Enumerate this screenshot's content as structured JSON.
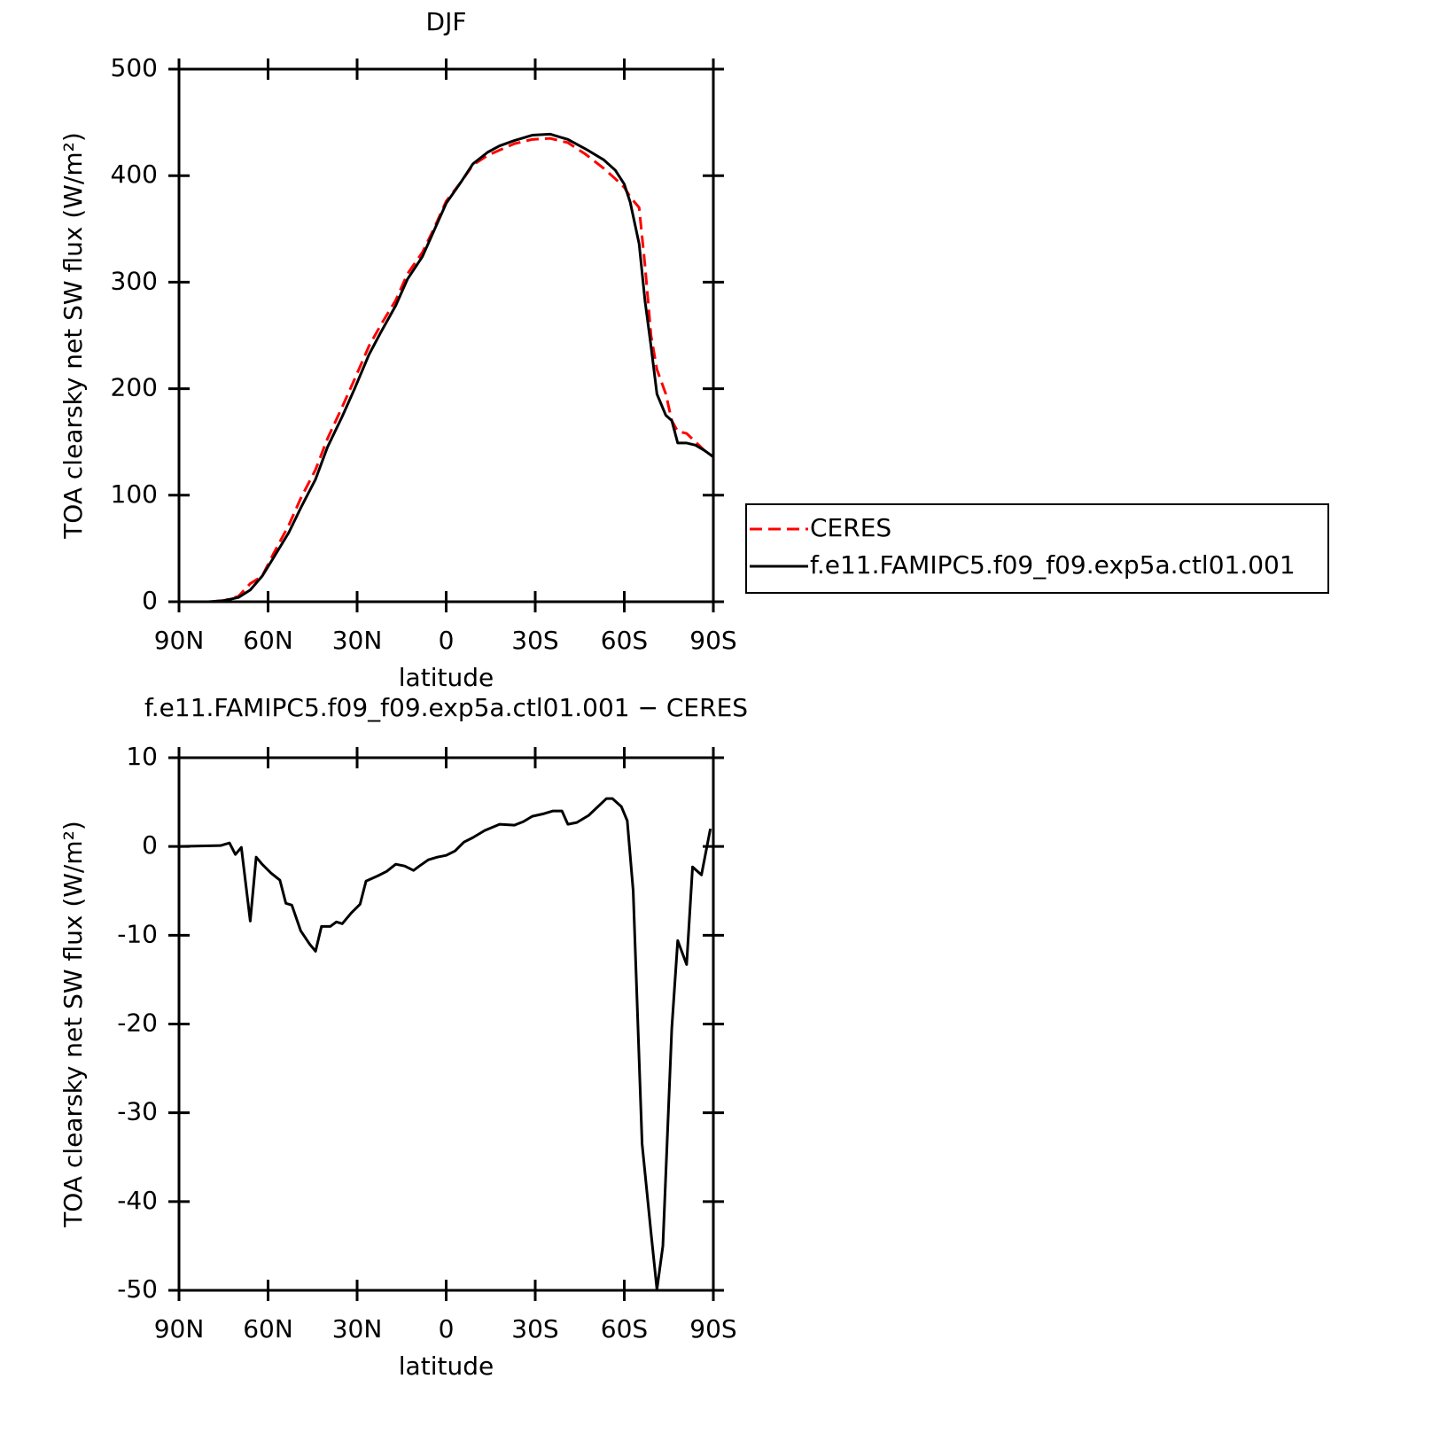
{
  "chart_data": [
    {
      "type": "line",
      "title": "DJF",
      "xlabel": "latitude",
      "ylabel": "TOA clearsky net SW flux (W/m²)",
      "x": [
        90,
        80,
        75,
        70,
        66,
        62,
        58,
        53,
        49,
        44,
        40,
        35,
        31,
        26,
        22,
        17,
        13,
        8,
        4,
        0,
        -5,
        -9,
        -14,
        -18,
        -23,
        -29,
        -35,
        -41,
        -47,
        -53,
        -57,
        -60,
        -62,
        -65,
        -67,
        -69,
        -71,
        -74,
        -76,
        -78,
        -81,
        -84,
        -87,
        -90
      ],
      "series": [
        {
          "name": "CERES",
          "color": "#ff0000",
          "style": "dashed",
          "values": [
            0,
            0,
            1,
            5,
            17,
            24,
            46,
            72,
            97,
            124,
            153,
            183,
            208,
            240,
            260,
            283,
            308,
            328,
            351,
            376,
            394,
            410,
            419,
            424,
            430,
            434,
            435,
            431,
            420,
            407,
            397,
            389,
            380,
            370,
            315,
            250,
            218,
            195,
            170,
            160,
            158,
            150,
            142,
            136
          ]
        },
        {
          "name": "f.e11.FAMIPC5.f09_f09.exp5a.ctl01.001",
          "color": "#000000",
          "style": "solid",
          "values": [
            0,
            0,
            1,
            4,
            11,
            24,
            42,
            65,
            88,
            115,
            145,
            174,
            199,
            232,
            253,
            278,
            303,
            324,
            349,
            374,
            394,
            411,
            422,
            428,
            433,
            438,
            439,
            434,
            425,
            415,
            405,
            392,
            375,
            336,
            282,
            240,
            195,
            175,
            170,
            149,
            149,
            147,
            142,
            136
          ]
        }
      ],
      "xlim": [
        90,
        -90
      ],
      "xticks": [
        {
          "value": 90,
          "label": "90N"
        },
        {
          "value": 60,
          "label": "60N"
        },
        {
          "value": 30,
          "label": "30N"
        },
        0,
        {
          "value": -30,
          "label": "30S"
        },
        {
          "value": -60,
          "label": "60S"
        },
        {
          "value": -90,
          "label": "90S"
        }
      ],
      "ylim": [
        0,
        500
      ],
      "yticks": [
        0,
        100,
        200,
        300,
        400,
        500
      ],
      "legend": "right"
    },
    {
      "type": "line",
      "title": "f.e11.FAMIPC5.f09_f09.exp5a.ctl01.001 − CERES",
      "xlabel": "latitude",
      "ylabel": "TOA clearsky net SW flux (W/m²)",
      "x": [
        90,
        76,
        73,
        71,
        69,
        66,
        64,
        62,
        59,
        56,
        54,
        52,
        49,
        46,
        44,
        42,
        39,
        37,
        35,
        32,
        29,
        27,
        23,
        20,
        17,
        14,
        11,
        9,
        6,
        3,
        0,
        -3,
        -6,
        -9,
        -13,
        -18,
        -23,
        -26,
        -29,
        -33,
        -36,
        -39,
        -41,
        -44,
        -48,
        -54,
        -56,
        -59,
        -61,
        -63,
        -66,
        -69,
        -71,
        -73,
        -76,
        -78,
        -81,
        -83,
        -86,
        -89
      ],
      "series": [
        {
          "color": "#000000",
          "style": "solid",
          "values": [
            0,
            0.1,
            0.4,
            -0.9,
            -0.1,
            -8.4,
            -1.2,
            -2,
            -3,
            -3.8,
            -6.4,
            -6.6,
            -9.5,
            -11,
            -11.8,
            -9,
            -9,
            -8.5,
            -8.7,
            -7.5,
            -6.5,
            -3.9,
            -3.3,
            -2.8,
            -2,
            -2.2,
            -2.7,
            -2.2,
            -1.5,
            -1.2,
            -1,
            -0.5,
            0.5,
            1,
            1.8,
            2.5,
            2.4,
            2.8,
            3.4,
            3.7,
            4,
            4,
            2.5,
            2.7,
            3.5,
            5.4,
            5.4,
            4.5,
            2.9,
            -5,
            -33.5,
            -43.5,
            -49.9,
            -45,
            -20.5,
            -10.6,
            -13.3,
            -2.3,
            -3.2,
            2
          ]
        }
      ],
      "xlim": [
        90,
        -90
      ],
      "xticks": [
        {
          "value": 90,
          "label": "90N"
        },
        {
          "value": 60,
          "label": "60N"
        },
        {
          "value": 30,
          "label": "30N"
        },
        0,
        {
          "value": -30,
          "label": "30S"
        },
        {
          "value": -60,
          "label": "60S"
        },
        {
          "value": -90,
          "label": "90S"
        }
      ],
      "ylim": [
        -50,
        10
      ],
      "yticks": [
        -50,
        -40,
        -30,
        -20,
        -10,
        0,
        10
      ]
    }
  ]
}
